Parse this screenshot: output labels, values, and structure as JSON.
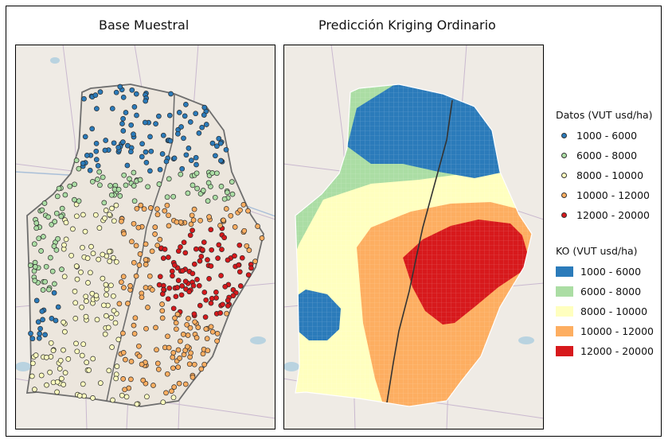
{
  "titles": {
    "left": "Base Muestral",
    "right": "Predicción Kriging Ordinario"
  },
  "legend_datos": {
    "title": "Datos (VUT usd/ha)",
    "items": [
      {
        "label": "1000 - 6000",
        "color": "#2b7bba"
      },
      {
        "label": "6000 - 8000",
        "color": "#abdda4"
      },
      {
        "label": "8000 - 10000",
        "color": "#ffffbf"
      },
      {
        "label": "10000 - 12000",
        "color": "#fdae61"
      },
      {
        "label": "12000 - 20000",
        "color": "#d7191c"
      }
    ]
  },
  "legend_ko": {
    "title": "KO  (VUT usd/ha)",
    "items": [
      {
        "label": "1000 - 6000",
        "color": "#2b7bba"
      },
      {
        "label": "6000 - 8000",
        "color": "#abdda4"
      },
      {
        "label": "8000 - 10000",
        "color": "#ffffbf"
      },
      {
        "label": "10000 - 12000",
        "color": "#fdae61"
      },
      {
        "label": "12000 - 20000",
        "color": "#d7191c"
      }
    ]
  }
}
